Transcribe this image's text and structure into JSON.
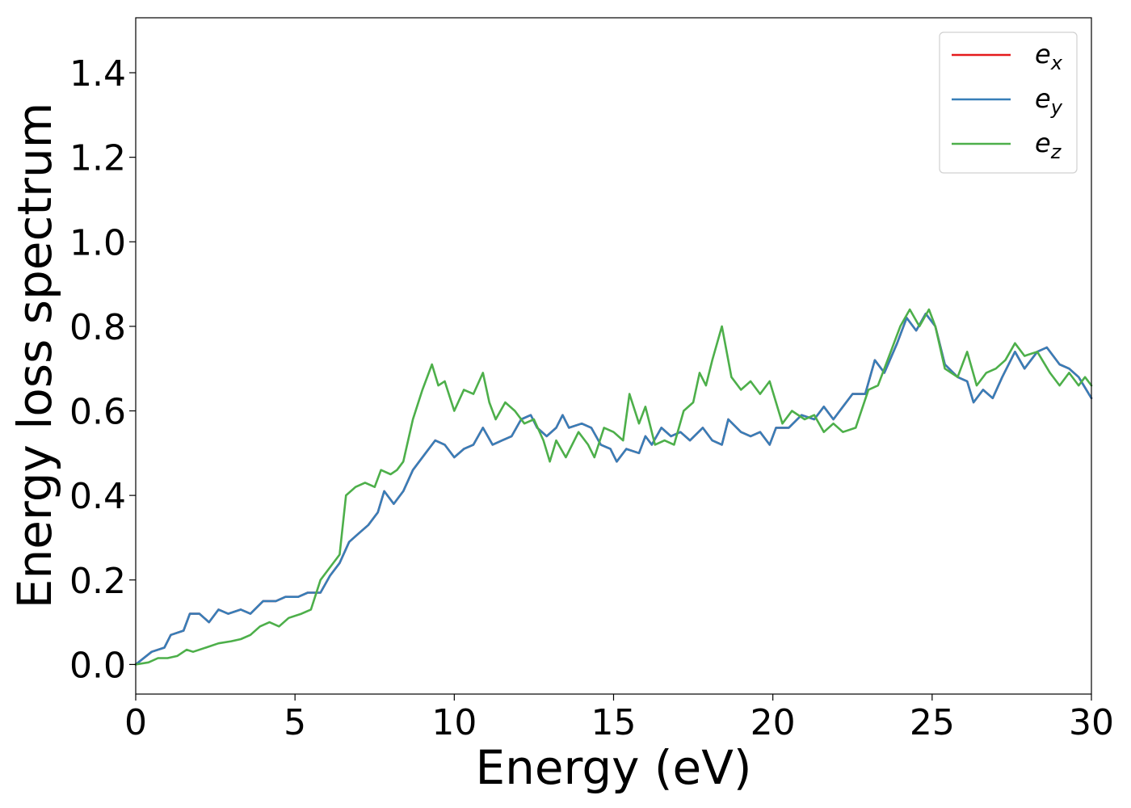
{
  "chart_data": {
    "type": "line",
    "title": "",
    "xlabel": "Energy (eV)",
    "ylabel": "Energy loss spectrum",
    "xlim": [
      0,
      30
    ],
    "ylim": [
      -0.07,
      1.53
    ],
    "xticks": [
      {
        "value": 0,
        "label": "0"
      },
      {
        "value": 5,
        "label": "5"
      },
      {
        "value": 10,
        "label": "10"
      },
      {
        "value": 15,
        "label": "15"
      },
      {
        "value": 20,
        "label": "20"
      },
      {
        "value": 25,
        "label": "25"
      },
      {
        "value": 30,
        "label": "30"
      }
    ],
    "yticks": [
      {
        "value": 0.0,
        "label": "0.0"
      },
      {
        "value": 0.2,
        "label": "0.2"
      },
      {
        "value": 0.4,
        "label": "0.4"
      },
      {
        "value": 0.6,
        "label": "0.6"
      },
      {
        "value": 0.8,
        "label": "0.8"
      },
      {
        "value": 1.0,
        "label": "1.0"
      },
      {
        "value": 1.2,
        "label": "1.2"
      },
      {
        "value": 1.4,
        "label": "1.4"
      }
    ],
    "grid": false,
    "legend": {
      "position": "top-right",
      "entries": [
        {
          "base": "e",
          "sub": "x",
          "color": "#e41a1c"
        },
        {
          "base": "e",
          "sub": "y",
          "color": "#377eb8"
        },
        {
          "base": "e",
          "sub": "z",
          "color": "#4daf4a"
        }
      ]
    },
    "series": [
      {
        "name": "e_x",
        "color": "#e41a1c",
        "points": [
          [
            0,
            0
          ],
          [
            0.5,
            0.03
          ],
          [
            0.9,
            0.04
          ],
          [
            1.1,
            0.07
          ],
          [
            1.5,
            0.08
          ],
          [
            1.7,
            0.12
          ],
          [
            2.0,
            0.12
          ],
          [
            2.3,
            0.1
          ],
          [
            2.6,
            0.13
          ],
          [
            2.9,
            0.12
          ],
          [
            3.3,
            0.13
          ],
          [
            3.6,
            0.12
          ],
          [
            4.0,
            0.15
          ],
          [
            4.4,
            0.15
          ],
          [
            4.7,
            0.16
          ],
          [
            5.1,
            0.16
          ],
          [
            5.4,
            0.17
          ],
          [
            5.8,
            0.17
          ],
          [
            6.1,
            0.21
          ],
          [
            6.4,
            0.24
          ],
          [
            6.7,
            0.29
          ],
          [
            7.0,
            0.31
          ],
          [
            7.3,
            0.33
          ],
          [
            7.6,
            0.36
          ],
          [
            7.8,
            0.41
          ],
          [
            8.1,
            0.38
          ],
          [
            8.4,
            0.41
          ],
          [
            8.7,
            0.46
          ],
          [
            9.1,
            0.5
          ],
          [
            9.4,
            0.53
          ],
          [
            9.7,
            0.52
          ],
          [
            10.0,
            0.49
          ],
          [
            10.3,
            0.51
          ],
          [
            10.6,
            0.52
          ],
          [
            10.9,
            0.56
          ],
          [
            11.2,
            0.52
          ],
          [
            11.5,
            0.53
          ],
          [
            11.8,
            0.54
          ],
          [
            12.1,
            0.58
          ],
          [
            12.4,
            0.59
          ],
          [
            12.6,
            0.56
          ],
          [
            12.9,
            0.54
          ],
          [
            13.2,
            0.56
          ],
          [
            13.4,
            0.59
          ],
          [
            13.6,
            0.56
          ],
          [
            14.0,
            0.57
          ],
          [
            14.3,
            0.56
          ],
          [
            14.6,
            0.52
          ],
          [
            14.9,
            0.51
          ],
          [
            15.1,
            0.48
          ],
          [
            15.4,
            0.51
          ],
          [
            15.8,
            0.5
          ],
          [
            16.0,
            0.54
          ],
          [
            16.2,
            0.52
          ],
          [
            16.5,
            0.56
          ],
          [
            16.8,
            0.54
          ],
          [
            17.1,
            0.55
          ],
          [
            17.4,
            0.53
          ],
          [
            17.8,
            0.56
          ],
          [
            18.1,
            0.53
          ],
          [
            18.4,
            0.52
          ],
          [
            18.6,
            0.58
          ],
          [
            19.0,
            0.55
          ],
          [
            19.3,
            0.54
          ],
          [
            19.6,
            0.55
          ],
          [
            19.9,
            0.52
          ],
          [
            20.1,
            0.56
          ],
          [
            20.5,
            0.56
          ],
          [
            20.9,
            0.59
          ],
          [
            21.3,
            0.58
          ],
          [
            21.6,
            0.61
          ],
          [
            21.9,
            0.58
          ],
          [
            22.2,
            0.61
          ],
          [
            22.5,
            0.64
          ],
          [
            22.9,
            0.64
          ],
          [
            23.2,
            0.72
          ],
          [
            23.5,
            0.69
          ],
          [
            23.9,
            0.76
          ],
          [
            24.2,
            0.82
          ],
          [
            24.5,
            0.79
          ],
          [
            24.8,
            0.83
          ],
          [
            25.1,
            0.8
          ],
          [
            25.4,
            0.71
          ],
          [
            25.8,
            0.68
          ],
          [
            26.1,
            0.67
          ],
          [
            26.3,
            0.62
          ],
          [
            26.6,
            0.65
          ],
          [
            26.9,
            0.63
          ],
          [
            27.2,
            0.68
          ],
          [
            27.6,
            0.74
          ],
          [
            27.9,
            0.7
          ],
          [
            28.3,
            0.74
          ],
          [
            28.6,
            0.75
          ],
          [
            29.0,
            0.71
          ],
          [
            29.3,
            0.7
          ],
          [
            29.6,
            0.68
          ],
          [
            30.0,
            0.63
          ]
        ]
      },
      {
        "name": "e_y",
        "color": "#377eb8",
        "points": [
          [
            0,
            0
          ],
          [
            0.5,
            0.03
          ],
          [
            0.9,
            0.04
          ],
          [
            1.1,
            0.07
          ],
          [
            1.5,
            0.08
          ],
          [
            1.7,
            0.12
          ],
          [
            2.0,
            0.12
          ],
          [
            2.3,
            0.1
          ],
          [
            2.6,
            0.13
          ],
          [
            2.9,
            0.12
          ],
          [
            3.3,
            0.13
          ],
          [
            3.6,
            0.12
          ],
          [
            4.0,
            0.15
          ],
          [
            4.4,
            0.15
          ],
          [
            4.7,
            0.16
          ],
          [
            5.1,
            0.16
          ],
          [
            5.4,
            0.17
          ],
          [
            5.8,
            0.17
          ],
          [
            6.1,
            0.21
          ],
          [
            6.4,
            0.24
          ],
          [
            6.7,
            0.29
          ],
          [
            7.0,
            0.31
          ],
          [
            7.3,
            0.33
          ],
          [
            7.6,
            0.36
          ],
          [
            7.8,
            0.41
          ],
          [
            8.1,
            0.38
          ],
          [
            8.4,
            0.41
          ],
          [
            8.7,
            0.46
          ],
          [
            9.1,
            0.5
          ],
          [
            9.4,
            0.53
          ],
          [
            9.7,
            0.52
          ],
          [
            10.0,
            0.49
          ],
          [
            10.3,
            0.51
          ],
          [
            10.6,
            0.52
          ],
          [
            10.9,
            0.56
          ],
          [
            11.2,
            0.52
          ],
          [
            11.5,
            0.53
          ],
          [
            11.8,
            0.54
          ],
          [
            12.1,
            0.58
          ],
          [
            12.4,
            0.59
          ],
          [
            12.6,
            0.56
          ],
          [
            12.9,
            0.54
          ],
          [
            13.2,
            0.56
          ],
          [
            13.4,
            0.59
          ],
          [
            13.6,
            0.56
          ],
          [
            14.0,
            0.57
          ],
          [
            14.3,
            0.56
          ],
          [
            14.6,
            0.52
          ],
          [
            14.9,
            0.51
          ],
          [
            15.1,
            0.48
          ],
          [
            15.4,
            0.51
          ],
          [
            15.8,
            0.5
          ],
          [
            16.0,
            0.54
          ],
          [
            16.2,
            0.52
          ],
          [
            16.5,
            0.56
          ],
          [
            16.8,
            0.54
          ],
          [
            17.1,
            0.55
          ],
          [
            17.4,
            0.53
          ],
          [
            17.8,
            0.56
          ],
          [
            18.1,
            0.53
          ],
          [
            18.4,
            0.52
          ],
          [
            18.6,
            0.58
          ],
          [
            19.0,
            0.55
          ],
          [
            19.3,
            0.54
          ],
          [
            19.6,
            0.55
          ],
          [
            19.9,
            0.52
          ],
          [
            20.1,
            0.56
          ],
          [
            20.5,
            0.56
          ],
          [
            20.9,
            0.59
          ],
          [
            21.3,
            0.58
          ],
          [
            21.6,
            0.61
          ],
          [
            21.9,
            0.58
          ],
          [
            22.2,
            0.61
          ],
          [
            22.5,
            0.64
          ],
          [
            22.9,
            0.64
          ],
          [
            23.2,
            0.72
          ],
          [
            23.5,
            0.69
          ],
          [
            23.9,
            0.76
          ],
          [
            24.2,
            0.82
          ],
          [
            24.5,
            0.79
          ],
          [
            24.8,
            0.83
          ],
          [
            25.1,
            0.8
          ],
          [
            25.4,
            0.71
          ],
          [
            25.8,
            0.68
          ],
          [
            26.1,
            0.67
          ],
          [
            26.3,
            0.62
          ],
          [
            26.6,
            0.65
          ],
          [
            26.9,
            0.63
          ],
          [
            27.2,
            0.68
          ],
          [
            27.6,
            0.74
          ],
          [
            27.9,
            0.7
          ],
          [
            28.3,
            0.74
          ],
          [
            28.6,
            0.75
          ],
          [
            29.0,
            0.71
          ],
          [
            29.3,
            0.7
          ],
          [
            29.6,
            0.68
          ],
          [
            30.0,
            0.63
          ]
        ]
      },
      {
        "name": "e_z",
        "color": "#4daf4a",
        "points": [
          [
            0,
            0
          ],
          [
            0.4,
            0.005
          ],
          [
            0.7,
            0.015
          ],
          [
            1.0,
            0.015
          ],
          [
            1.3,
            0.02
          ],
          [
            1.6,
            0.035
          ],
          [
            1.8,
            0.03
          ],
          [
            2.2,
            0.04
          ],
          [
            2.6,
            0.05
          ],
          [
            3.0,
            0.055
          ],
          [
            3.3,
            0.06
          ],
          [
            3.6,
            0.07
          ],
          [
            3.9,
            0.09
          ],
          [
            4.2,
            0.1
          ],
          [
            4.5,
            0.09
          ],
          [
            4.8,
            0.11
          ],
          [
            5.2,
            0.12
          ],
          [
            5.5,
            0.13
          ],
          [
            5.8,
            0.2
          ],
          [
            6.1,
            0.23
          ],
          [
            6.4,
            0.26
          ],
          [
            6.6,
            0.4
          ],
          [
            6.9,
            0.42
          ],
          [
            7.2,
            0.43
          ],
          [
            7.5,
            0.42
          ],
          [
            7.7,
            0.46
          ],
          [
            8.0,
            0.45
          ],
          [
            8.2,
            0.46
          ],
          [
            8.4,
            0.48
          ],
          [
            8.7,
            0.58
          ],
          [
            9.0,
            0.65
          ],
          [
            9.3,
            0.71
          ],
          [
            9.5,
            0.66
          ],
          [
            9.7,
            0.67
          ],
          [
            10.0,
            0.6
          ],
          [
            10.3,
            0.65
          ],
          [
            10.6,
            0.64
          ],
          [
            10.9,
            0.69
          ],
          [
            11.1,
            0.62
          ],
          [
            11.3,
            0.58
          ],
          [
            11.6,
            0.62
          ],
          [
            11.9,
            0.6
          ],
          [
            12.2,
            0.57
          ],
          [
            12.5,
            0.58
          ],
          [
            12.8,
            0.53
          ],
          [
            13.0,
            0.48
          ],
          [
            13.2,
            0.53
          ],
          [
            13.5,
            0.49
          ],
          [
            13.9,
            0.55
          ],
          [
            14.2,
            0.52
          ],
          [
            14.4,
            0.49
          ],
          [
            14.7,
            0.56
          ],
          [
            15.0,
            0.55
          ],
          [
            15.3,
            0.53
          ],
          [
            15.5,
            0.64
          ],
          [
            15.8,
            0.57
          ],
          [
            16.0,
            0.61
          ],
          [
            16.3,
            0.52
          ],
          [
            16.6,
            0.53
          ],
          [
            16.9,
            0.52
          ],
          [
            17.2,
            0.6
          ],
          [
            17.5,
            0.62
          ],
          [
            17.7,
            0.69
          ],
          [
            17.9,
            0.66
          ],
          [
            18.1,
            0.72
          ],
          [
            18.4,
            0.8
          ],
          [
            18.7,
            0.68
          ],
          [
            19.0,
            0.65
          ],
          [
            19.3,
            0.67
          ],
          [
            19.6,
            0.64
          ],
          [
            19.9,
            0.67
          ],
          [
            20.3,
            0.57
          ],
          [
            20.6,
            0.6
          ],
          [
            21.0,
            0.58
          ],
          [
            21.3,
            0.59
          ],
          [
            21.6,
            0.55
          ],
          [
            21.9,
            0.57
          ],
          [
            22.2,
            0.55
          ],
          [
            22.6,
            0.56
          ],
          [
            23.0,
            0.65
          ],
          [
            23.3,
            0.66
          ],
          [
            23.7,
            0.74
          ],
          [
            24.0,
            0.8
          ],
          [
            24.3,
            0.84
          ],
          [
            24.6,
            0.8
          ],
          [
            24.9,
            0.84
          ],
          [
            25.1,
            0.8
          ],
          [
            25.4,
            0.7
          ],
          [
            25.8,
            0.68
          ],
          [
            26.1,
            0.74
          ],
          [
            26.4,
            0.66
          ],
          [
            26.7,
            0.69
          ],
          [
            27.0,
            0.7
          ],
          [
            27.3,
            0.72
          ],
          [
            27.6,
            0.76
          ],
          [
            27.9,
            0.73
          ],
          [
            28.3,
            0.74
          ],
          [
            28.7,
            0.69
          ],
          [
            29.0,
            0.66
          ],
          [
            29.3,
            0.69
          ],
          [
            29.6,
            0.66
          ],
          [
            29.8,
            0.68
          ],
          [
            30.0,
            0.66
          ]
        ]
      }
    ]
  }
}
